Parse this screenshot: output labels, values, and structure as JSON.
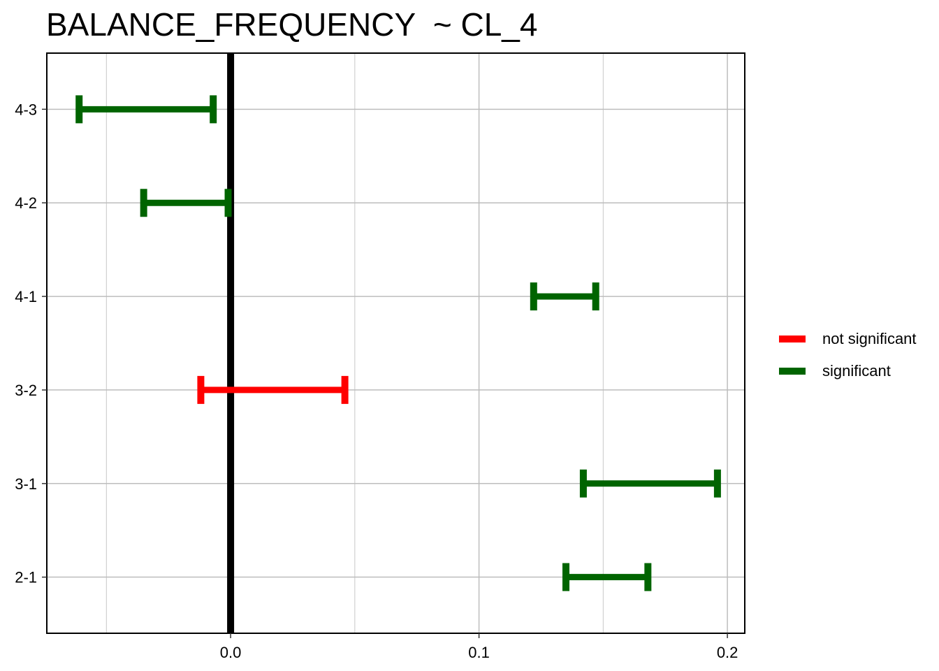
{
  "chart_data": {
    "type": "interval",
    "title": "BALANCE_FREQUENCY  ~ CL_4",
    "xlabel": "",
    "ylabel": "",
    "xlim": [
      -0.074,
      0.207
    ],
    "x_ticks": [
      0.0,
      0.1,
      0.2
    ],
    "x_tick_labels": [
      "0.0",
      "0.1",
      "0.2"
    ],
    "x_minor_gridlines": [
      -0.05,
      0.05,
      0.15
    ],
    "reference_line_x": 0.0,
    "categories": [
      "4-3",
      "4-2",
      "4-1",
      "3-2",
      "3-1",
      "2-1"
    ],
    "intervals": [
      {
        "label": "4-3",
        "lower": -0.061,
        "upper": -0.007,
        "group": "significant"
      },
      {
        "label": "4-2",
        "lower": -0.035,
        "upper": -0.001,
        "group": "significant"
      },
      {
        "label": "4-1",
        "lower": 0.122,
        "upper": 0.147,
        "group": "significant"
      },
      {
        "label": "3-2",
        "lower": -0.012,
        "upper": 0.046,
        "group": "not significant"
      },
      {
        "label": "3-1",
        "lower": 0.142,
        "upper": 0.196,
        "group": "significant"
      },
      {
        "label": "2-1",
        "lower": 0.135,
        "upper": 0.168,
        "group": "significant"
      }
    ],
    "legend": {
      "position": "right",
      "items": [
        {
          "label": "not significant",
          "color": "#ff0000"
        },
        {
          "label": "significant",
          "color": "#006400"
        }
      ]
    },
    "grid": true
  }
}
